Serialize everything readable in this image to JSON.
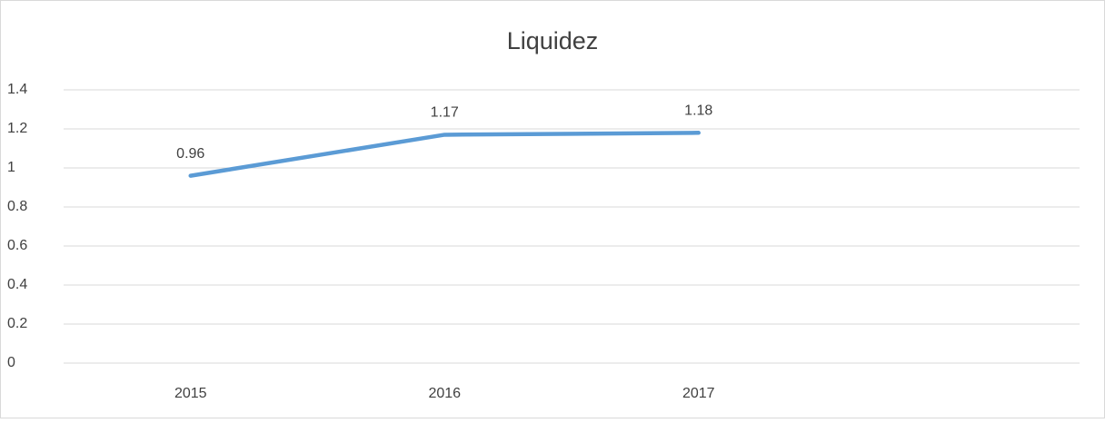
{
  "chart_data": {
    "type": "line",
    "title": "Liquidez",
    "categories": [
      "2015",
      "2016",
      "2017",
      null
    ],
    "series": [
      {
        "name": "Liquidez",
        "color": "#5b9bd5",
        "values": [
          0.96,
          1.17,
          1.18,
          null
        ]
      }
    ],
    "ylim": [
      0,
      1.4
    ],
    "yticks": [
      0,
      0.2,
      0.4,
      0.6,
      0.8,
      1,
      1.2,
      1.4
    ],
    "grid": true,
    "data_labels": true
  }
}
